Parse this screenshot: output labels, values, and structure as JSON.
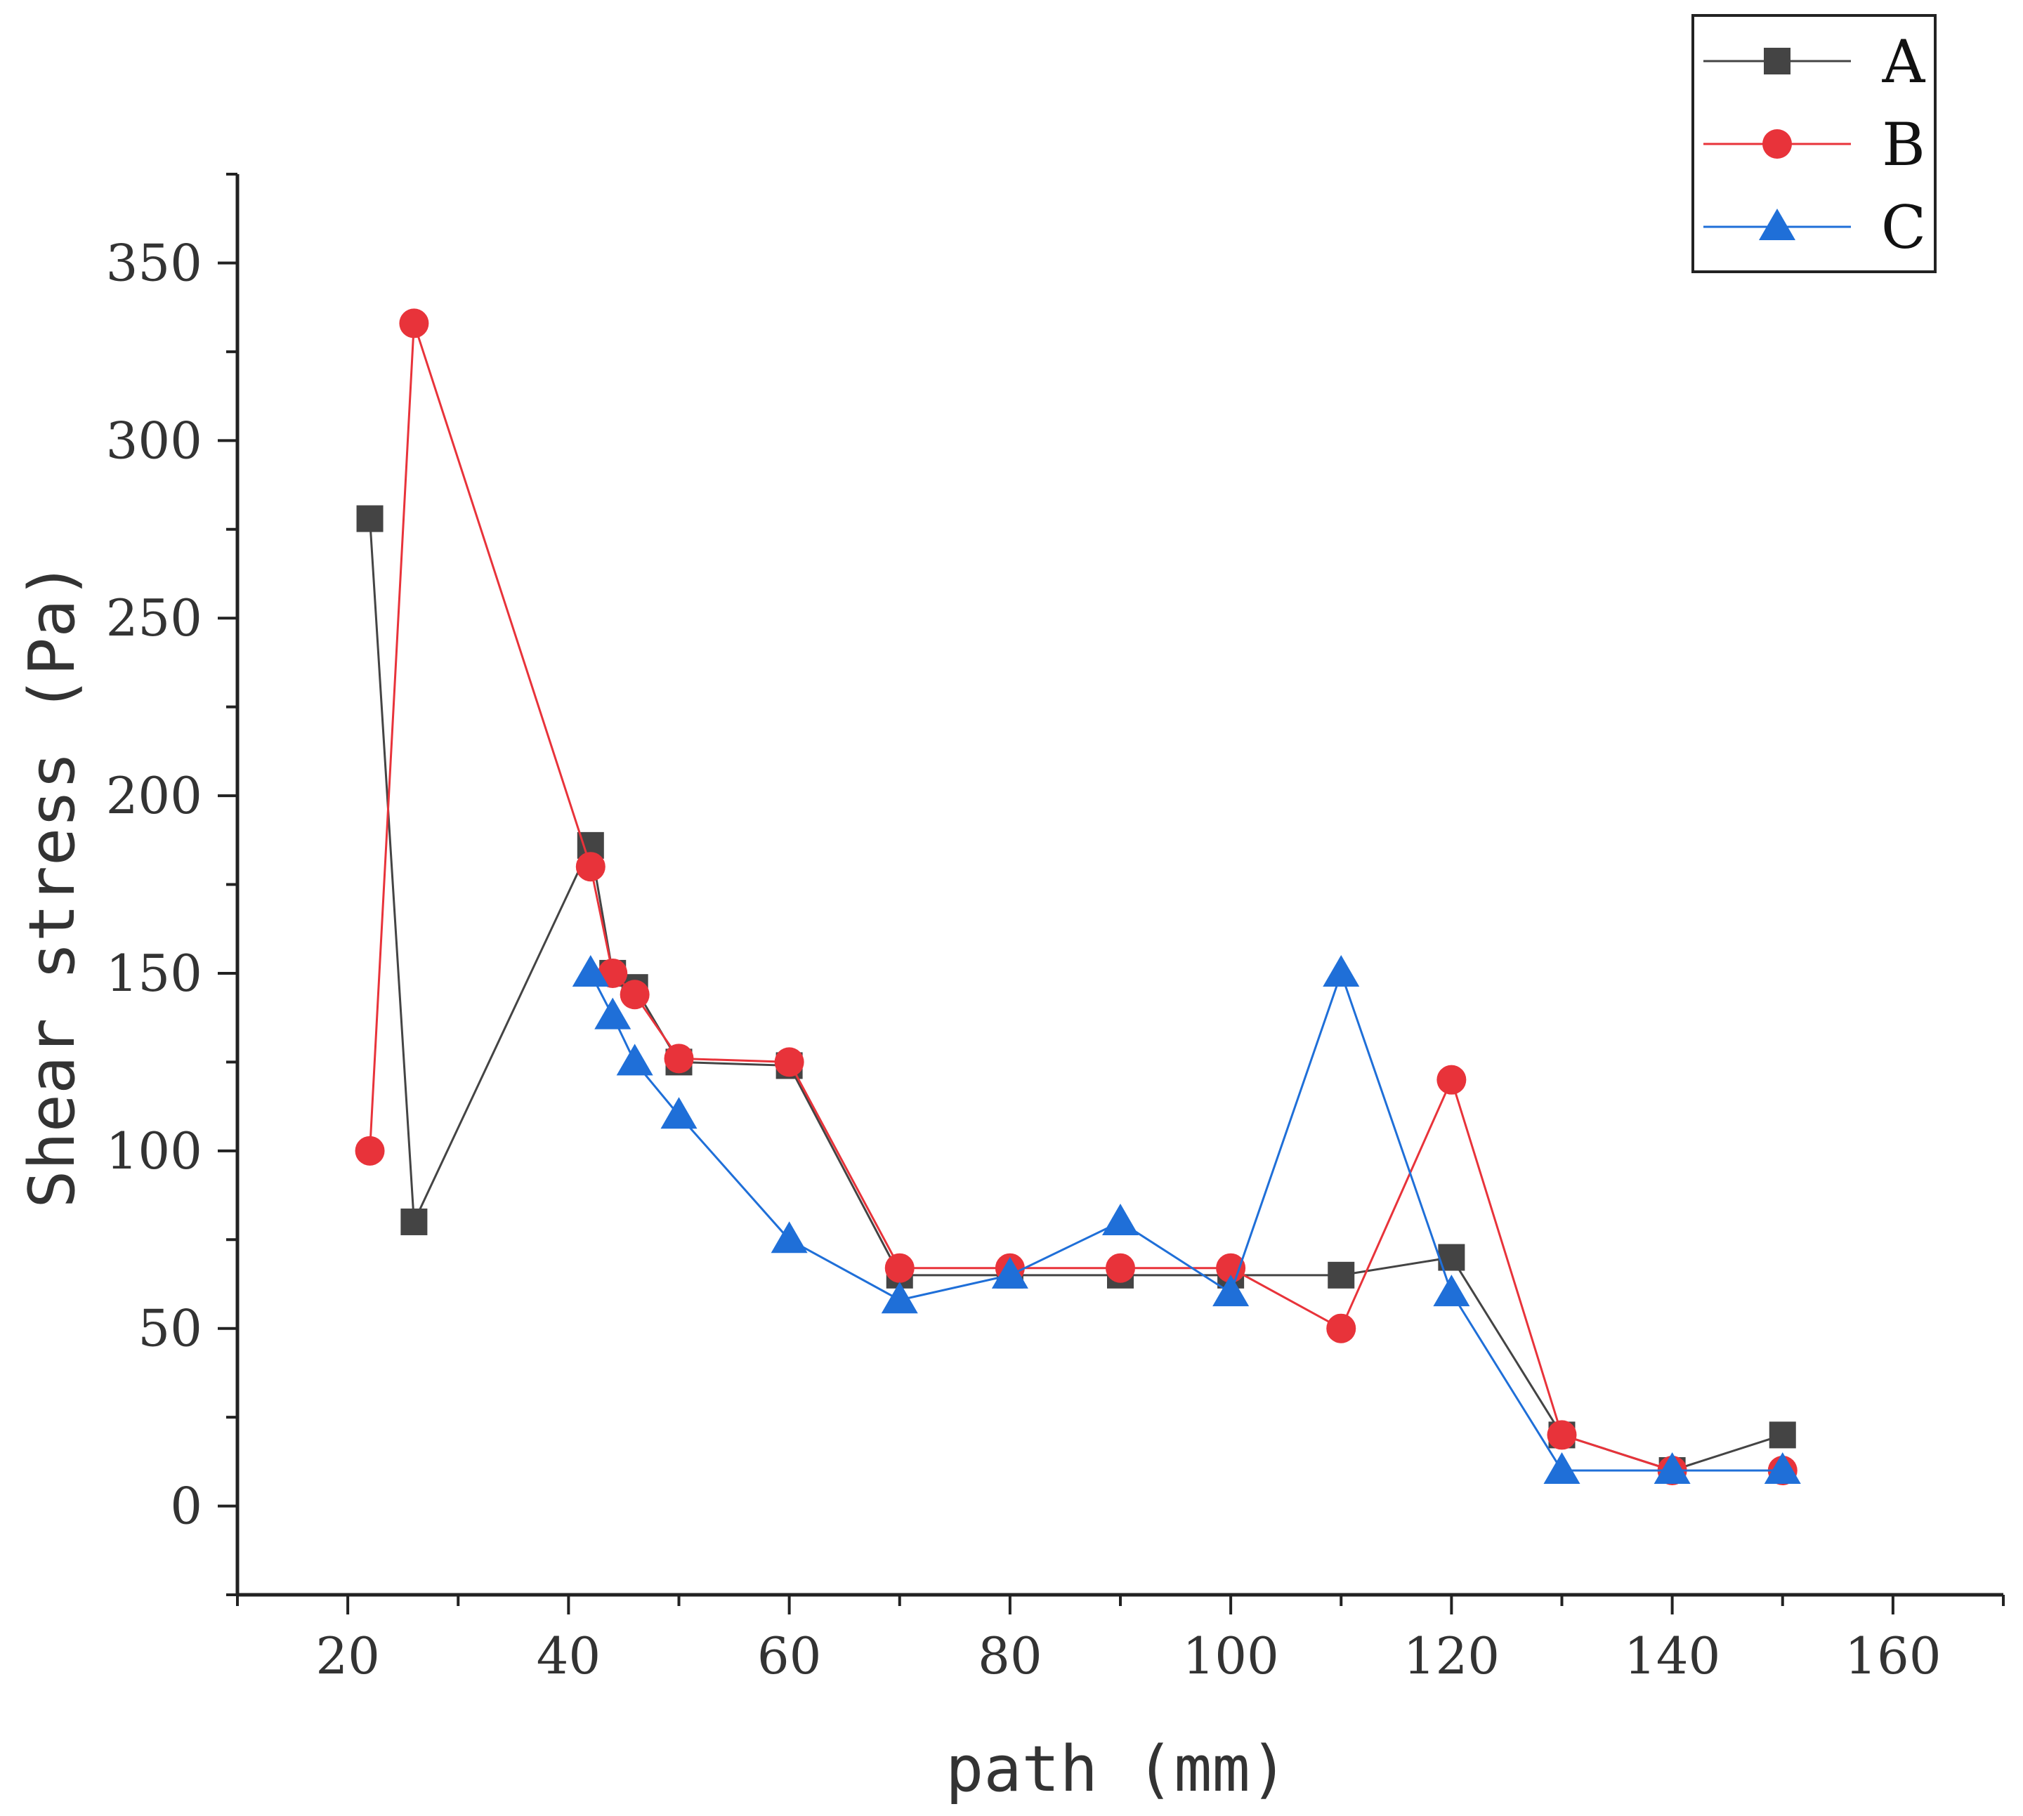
{
  "chart_data": {
    "type": "line",
    "title": "",
    "xlabel": "path (mm)",
    "ylabel": "Shear stress (Pa)",
    "xlim": [
      10,
      170
    ],
    "ylim": [
      -25,
      375
    ],
    "xticks": [
      20,
      40,
      60,
      80,
      100,
      120,
      140,
      160
    ],
    "yticks": [
      0,
      50,
      100,
      150,
      200,
      250,
      300,
      350
    ],
    "grid": false,
    "legend_position": "top-right",
    "series": [
      {
        "name": "A",
        "color": "#444444",
        "marker": "square",
        "x": [
          22,
          26,
          42,
          44,
          46,
          50,
          60,
          70,
          80,
          90,
          100,
          110,
          120,
          130,
          140,
          150
        ],
        "y": [
          278,
          80,
          186,
          150,
          146,
          125,
          124,
          65,
          65,
          65,
          65,
          65,
          70,
          20,
          10,
          20
        ]
      },
      {
        "name": "B",
        "color": "#e8333a",
        "marker": "circle",
        "x": [
          22,
          26,
          42,
          44,
          46,
          50,
          60,
          70,
          80,
          90,
          100,
          110,
          120,
          130,
          140,
          150
        ],
        "y": [
          100,
          333,
          180,
          150,
          144,
          126,
          125,
          67,
          67,
          67,
          67,
          50,
          120,
          20,
          10,
          10
        ]
      },
      {
        "name": "C",
        "color": "#1f6fd8",
        "marker": "triangle",
        "x": [
          42,
          44,
          46,
          50,
          60,
          70,
          80,
          90,
          100,
          110,
          120,
          130,
          140,
          150
        ],
        "y": [
          150,
          138,
          125,
          110,
          75,
          58,
          65,
          80,
          60,
          150,
          60,
          10,
          10,
          10
        ]
      }
    ]
  }
}
